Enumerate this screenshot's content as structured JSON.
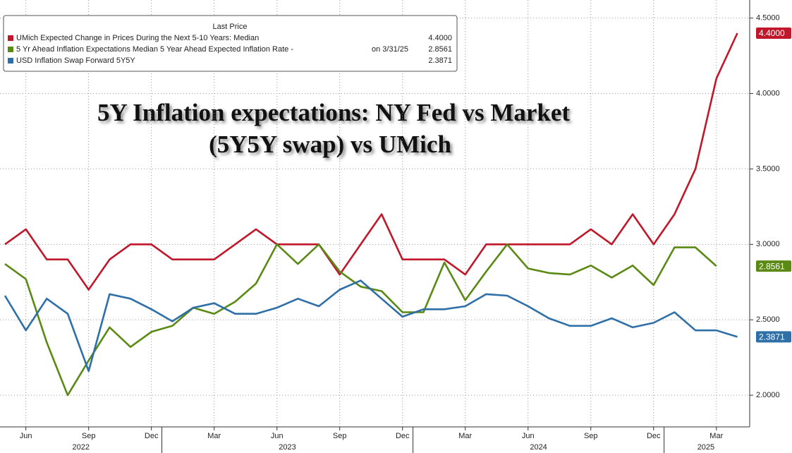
{
  "chart_data": {
    "type": "line",
    "title": "5Y Inflation expectations: NY Fed vs Market",
    "subtitle": "(5Y5Y swap) vs UMich",
    "legend_title": "Last Price",
    "x": [
      "2022-05",
      "2022-06",
      "2022-07",
      "2022-08",
      "2022-09",
      "2022-10",
      "2022-11",
      "2022-12",
      "2023-01",
      "2023-02",
      "2023-03",
      "2023-04",
      "2023-05",
      "2023-06",
      "2023-07",
      "2023-08",
      "2023-09",
      "2023-10",
      "2023-11",
      "2023-12",
      "2024-01",
      "2024-02",
      "2024-03",
      "2024-04",
      "2024-05",
      "2024-06",
      "2024-07",
      "2024-08",
      "2024-09",
      "2024-10",
      "2024-11",
      "2024-12",
      "2025-01",
      "2025-02",
      "2025-03",
      "2025-04"
    ],
    "xticks": [
      {
        "value": "2022-06",
        "label": "Jun"
      },
      {
        "value": "2022-09",
        "label": "Sep"
      },
      {
        "value": "2022-12",
        "label": "Dec"
      },
      {
        "value": "2023-03",
        "label": "Mar"
      },
      {
        "value": "2023-06",
        "label": "Jun"
      },
      {
        "value": "2023-09",
        "label": "Sep"
      },
      {
        "value": "2023-12",
        "label": "Dec"
      },
      {
        "value": "2024-03",
        "label": "Mar"
      },
      {
        "value": "2024-06",
        "label": "Jun"
      },
      {
        "value": "2024-09",
        "label": "Sep"
      },
      {
        "value": "2024-12",
        "label": "Dec"
      },
      {
        "value": "2025-03",
        "label": "Mar"
      }
    ],
    "year_labels": [
      "2022",
      "2023",
      "2024",
      "2025"
    ],
    "ylim": [
      1.79,
      4.62
    ],
    "yticks": [
      {
        "value": 2.0,
        "label": "2.0000"
      },
      {
        "value": 2.5,
        "label": "2.5000"
      },
      {
        "value": 3.0,
        "label": "3.0000"
      },
      {
        "value": 3.5,
        "label": "3.5000"
      },
      {
        "value": 4.0,
        "label": "4.0000"
      },
      {
        "value": 4.5,
        "label": "4.5000"
      }
    ],
    "grid": true,
    "legend": "upper left",
    "series": [
      {
        "name": "UMich Expected Change in Prices During the Next 5-10 Years: Median",
        "color": "#c0182a",
        "values": [
          3.0,
          3.1,
          2.9,
          2.9,
          2.7,
          2.9,
          3.0,
          3.0,
          2.9,
          2.9,
          2.9,
          3.0,
          3.1,
          3.0,
          3.0,
          3.0,
          2.8,
          3.0,
          3.2,
          2.9,
          2.9,
          2.9,
          2.8,
          3.0,
          3.0,
          3.0,
          3.0,
          3.0,
          3.1,
          3.0,
          3.2,
          3.0,
          3.2,
          3.5,
          4.1,
          4.4
        ],
        "value_labels": [
          null,
          null,
          null,
          null,
          null,
          null,
          null,
          null,
          null,
          null,
          null,
          null,
          null,
          null,
          null,
          null,
          null,
          null,
          null,
          null,
          null,
          null,
          null,
          null,
          null,
          null,
          null,
          null,
          null,
          null,
          null,
          null,
          null,
          null,
          null,
          "4.4000"
        ]
      },
      {
        "name": "5 Yr Ahead Inflation Expectations Median 5 Year Ahead Expected Inflation Rate -",
        "legend_note": "on 3/31/25",
        "color": "#5a8a14",
        "values": [
          2.87,
          2.77,
          2.35,
          2.0,
          2.23,
          2.45,
          2.32,
          2.42,
          2.46,
          2.58,
          2.54,
          2.62,
          2.74,
          3.0,
          2.87,
          3.0,
          2.82,
          2.72,
          2.69,
          2.55,
          2.55,
          2.88,
          2.63,
          2.82,
          3.0,
          2.84,
          2.81,
          2.8,
          2.86,
          2.78,
          2.86,
          2.73,
          2.98,
          2.98,
          2.8561,
          null
        ],
        "value_labels": [
          null,
          null,
          null,
          null,
          null,
          null,
          null,
          null,
          null,
          null,
          null,
          null,
          null,
          null,
          null,
          null,
          null,
          null,
          null,
          null,
          null,
          null,
          null,
          null,
          null,
          null,
          null,
          null,
          null,
          null,
          null,
          null,
          null,
          null,
          "2.8561",
          null
        ]
      },
      {
        "name": "USD Inflation Swap Forward 5Y5Y",
        "color": "#2f6fa7",
        "values": [
          2.66,
          2.43,
          2.64,
          2.54,
          2.16,
          2.67,
          2.64,
          2.57,
          2.49,
          2.58,
          2.61,
          2.54,
          2.54,
          2.58,
          2.64,
          2.59,
          2.7,
          2.76,
          2.64,
          2.52,
          2.57,
          2.57,
          2.59,
          2.67,
          2.66,
          2.59,
          2.51,
          2.46,
          2.46,
          2.51,
          2.45,
          2.48,
          2.55,
          2.43,
          2.43,
          2.3871
        ],
        "value_labels": [
          null,
          null,
          null,
          null,
          null,
          null,
          null,
          null,
          null,
          null,
          null,
          null,
          null,
          null,
          null,
          null,
          null,
          null,
          null,
          null,
          null,
          null,
          null,
          null,
          null,
          null,
          null,
          null,
          null,
          null,
          null,
          null,
          null,
          null,
          null,
          "2.3871"
        ]
      }
    ]
  }
}
